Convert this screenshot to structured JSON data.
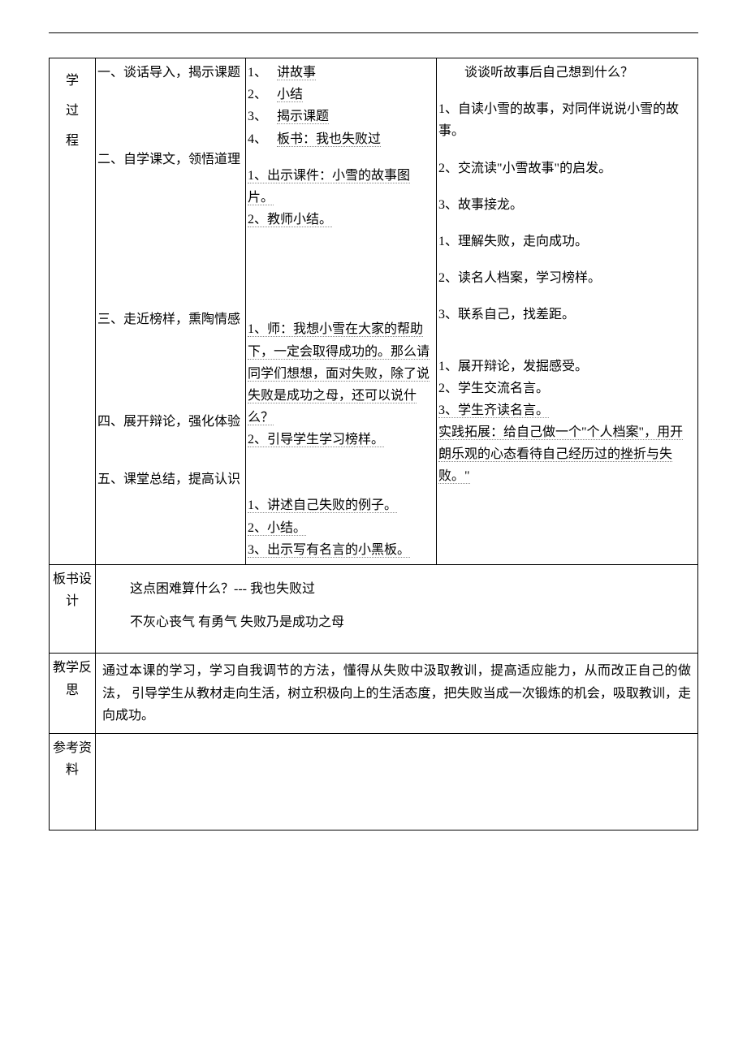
{
  "row_labels": {
    "process_chars": [
      "学",
      "过",
      "程"
    ],
    "board": "板书设计",
    "reflection": "教学反思",
    "reference": "参考资料"
  },
  "process": {
    "sections": {
      "s1": "一、谈话导入，揭示课题",
      "s2": "二、自学课文，领悟道理",
      "s3": "三、走近榜样，熏陶情感",
      "s4": "四、展开辩论，强化体验",
      "s5": "五、课堂总结，提高认识"
    },
    "teacher": {
      "t1_1": "1、",
      "t1_1b": "讲故事",
      "t1_2": "2、",
      "t1_2b": "小结",
      "t1_3": "3、",
      "t1_3b": "揭示课题",
      "t1_4": "4、",
      "t1_4b": "板书：我也失败过",
      "t2_1": "1、出示课件：小雪的故事图片。",
      "t2_2": "2、教师小结。",
      "t3_1": "1、师：我想小雪在大家的帮助下，一定会取得成功的。那么请同学们想想，面对失败，除了说失败是成功之母，还可以说什么？",
      "t3_2": "2、引导学生学习榜样。",
      "t5_1": "1、讲述自己失败的例子。",
      "t5_2": "2、小结。",
      "t5_3": "3、出示写有名言的小黑板。"
    },
    "student": {
      "u1_intro": "谈谈听故事后自己想到什么？",
      "u1_1": "1、自读小雪的故事，对同伴说说小雪的故事。",
      "u1_2": "2、交流读\"小雪故事\"的启发。",
      "u1_3": "3、故事接龙。",
      "u3_1": "1、理解失败，走向成功。",
      "u3_2": "2、读名人档案，学习榜样。",
      "u3_3": "3、联系自己，找差距。",
      "u4_1": "1、展开辩论，发掘感受。",
      "u4_2": "2、学生交流名言。",
      "u4_3": "3、学生齐读名言。",
      "u5": "实践拓展：给自己做一个\"个人档案\"，用开朗乐观的心态看待自己经历过的挫折与失败。\""
    }
  },
  "board": {
    "line1": "这点困难算什么？--- 我也失败过",
    "line2": "不灰心丧气   有勇气       失败乃是成功之母"
  },
  "reflection": "通过本课的学习，学习自我调节的方法，懂得从失败中汲取教训，提高适应能力，从而改正自己的做法， 引导学生从教材走向生活，树立积极向上的生活态度，把失败当成一次锻炼的机会，吸取教训，走向成功。"
}
